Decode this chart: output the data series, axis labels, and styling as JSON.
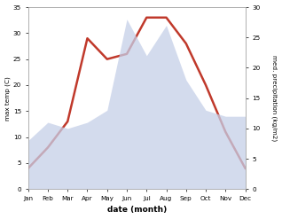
{
  "months": [
    "Jan",
    "Feb",
    "Mar",
    "Apr",
    "May",
    "Jun",
    "Jul",
    "Aug",
    "Sep",
    "Oct",
    "Nov",
    "Dec"
  ],
  "max_temp": [
    4,
    8,
    13,
    29,
    25,
    26,
    33,
    33,
    28,
    20,
    11,
    4
  ],
  "precipitation": [
    8,
    11,
    10,
    11,
    13,
    28,
    22,
    27,
    18,
    13,
    12,
    12
  ],
  "temp_color": "#c0392b",
  "precip_color_fill": "#c5cfe8",
  "temp_ylim": [
    0,
    35
  ],
  "precip_ylim": [
    0,
    30
  ],
  "temp_yticks": [
    0,
    5,
    10,
    15,
    20,
    25,
    30,
    35
  ],
  "precip_yticks": [
    0,
    5,
    10,
    15,
    20,
    25,
    30
  ],
  "xlabel": "date (month)",
  "ylabel_left": "max temp (C)",
  "ylabel_right": "med. precipitation (kg/m2)",
  "background_color": "#ffffff"
}
